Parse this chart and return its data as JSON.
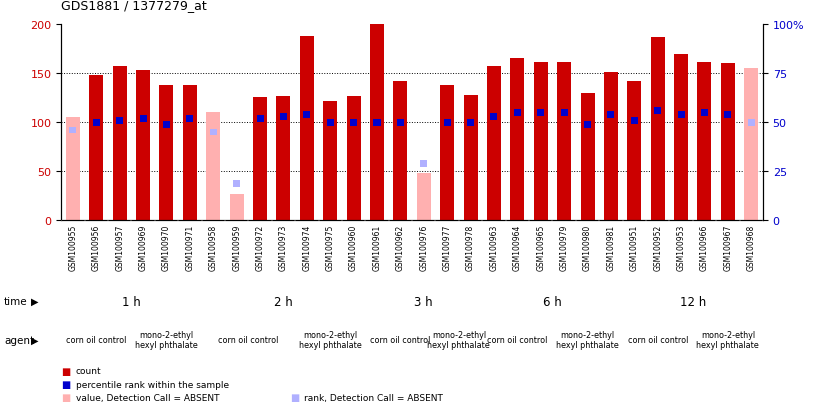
{
  "title": "GDS1881 / 1377279_at",
  "samples": [
    "GSM100955",
    "GSM100956",
    "GSM100957",
    "GSM100969",
    "GSM100970",
    "GSM100971",
    "GSM100958",
    "GSM100959",
    "GSM100972",
    "GSM100973",
    "GSM100974",
    "GSM100975",
    "GSM100960",
    "GSM100961",
    "GSM100962",
    "GSM100976",
    "GSM100977",
    "GSM100978",
    "GSM100963",
    "GSM100964",
    "GSM100965",
    "GSM100979",
    "GSM100980",
    "GSM100981",
    "GSM100951",
    "GSM100952",
    "GSM100953",
    "GSM100966",
    "GSM100967",
    "GSM100968"
  ],
  "count_values": [
    105,
    148,
    157,
    153,
    138,
    138,
    110,
    27,
    126,
    127,
    188,
    122,
    127,
    200,
    142,
    48,
    138,
    128,
    157,
    165,
    161,
    161,
    130,
    151,
    142,
    187,
    169,
    161,
    160,
    155
  ],
  "rank_values": [
    46,
    50,
    51,
    52,
    49,
    52,
    45,
    19,
    52,
    53,
    54,
    50,
    50,
    50,
    50,
    29,
    50,
    50,
    53,
    55,
    55,
    55,
    49,
    54,
    51,
    56,
    54,
    55,
    54,
    50
  ],
  "absent_flags": [
    true,
    false,
    false,
    false,
    false,
    false,
    true,
    true,
    false,
    false,
    false,
    false,
    false,
    false,
    false,
    true,
    false,
    false,
    false,
    false,
    false,
    false,
    false,
    false,
    false,
    false,
    false,
    false,
    false,
    true
  ],
  "time_groups": [
    {
      "label": "1 h",
      "start": 0,
      "end": 6,
      "color": "#c8f0c8"
    },
    {
      "label": "2 h",
      "start": 6,
      "end": 13,
      "color": "#c8f0c8"
    },
    {
      "label": "3 h",
      "start": 13,
      "end": 18,
      "color": "#c8f0c8"
    },
    {
      "label": "6 h",
      "start": 18,
      "end": 24,
      "color": "#c8f0c8"
    },
    {
      "label": "12 h",
      "start": 24,
      "end": 30,
      "color": "#66dd66"
    }
  ],
  "agent_groups": [
    {
      "label": "corn oil control",
      "start": 0,
      "end": 3
    },
    {
      "label": "mono-2-ethyl\nhexyl phthalate",
      "start": 3,
      "end": 6
    },
    {
      "label": "corn oil control",
      "start": 6,
      "end": 10
    },
    {
      "label": "mono-2-ethyl\nhexyl phthalate",
      "start": 10,
      "end": 13
    },
    {
      "label": "corn oil control",
      "start": 13,
      "end": 16
    },
    {
      "label": "mono-2-ethyl\nhexyl phthalate",
      "start": 16,
      "end": 18
    },
    {
      "label": "corn oil control",
      "start": 18,
      "end": 21
    },
    {
      "label": "mono-2-ethyl\nhexyl phthalate",
      "start": 21,
      "end": 24
    },
    {
      "label": "corn oil control",
      "start": 24,
      "end": 27
    },
    {
      "label": "mono-2-ethyl\nhexyl phthalate",
      "start": 27,
      "end": 30
    }
  ],
  "bar_color_present": "#cc0000",
  "bar_color_absent": "#ffb0b0",
  "rank_color_present": "#0000cc",
  "rank_color_absent": "#b0b0ff",
  "ylim": [
    0,
    200
  ],
  "y2lim": [
    0,
    100
  ],
  "yticks": [
    0,
    50,
    100,
    150,
    200
  ],
  "y2ticks": [
    0,
    25,
    50,
    75,
    100
  ],
  "y2ticklabels": [
    "0",
    "25",
    "50",
    "75",
    "100%"
  ],
  "legend_items": [
    {
      "color": "#cc0000",
      "label": "count"
    },
    {
      "color": "#0000cc",
      "label": "percentile rank within the sample"
    },
    {
      "color": "#ffb0b0",
      "label": "value, Detection Call = ABSENT"
    },
    {
      "color": "#b0b0ff",
      "label": "rank, Detection Call = ABSENT"
    }
  ],
  "bg_color": "#ffffff",
  "plot_bg": "#ffffff",
  "axis_label_color_left": "#cc0000",
  "axis_label_color_right": "#0000cc",
  "bar_width": 0.6,
  "agent_color_even": "#e8b8e8",
  "agent_color_odd": "#f0c8f0",
  "xlabel_bg": "#d0d0d0"
}
